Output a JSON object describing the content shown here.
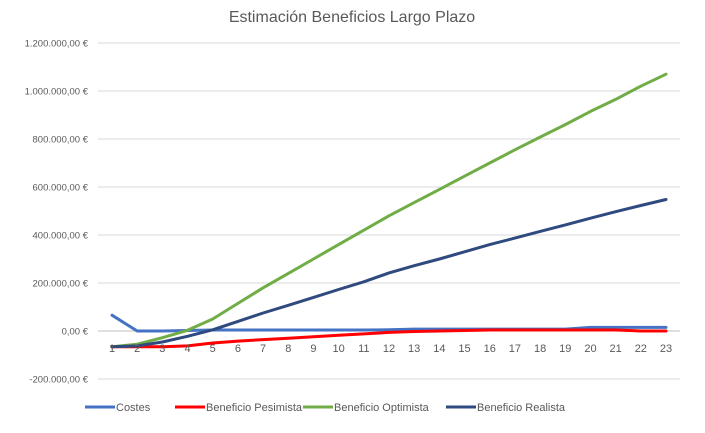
{
  "chart_data": {
    "type": "line",
    "title": "Estimación Beneficios Largo Plazo",
    "xlabel": "",
    "ylabel": "",
    "categories": [
      "1",
      "2",
      "3",
      "4",
      "5",
      "6",
      "7",
      "8",
      "9",
      "10",
      "11",
      "12",
      "13",
      "14",
      "15",
      "16",
      "17",
      "18",
      "19",
      "20",
      "21",
      "22",
      "23"
    ],
    "ylim": [
      -200000,
      1200000
    ],
    "yticks": [
      -200000,
      0,
      200000,
      400000,
      600000,
      800000,
      1000000,
      1200000
    ],
    "ytick_labels": [
      "-200.000,00 €",
      "0,00 €",
      "200.000,00 €",
      "400.000,00 €",
      "600.000,00 €",
      "800.000,00 €",
      "1.000.000,00 €",
      "1.200.000,00 €"
    ],
    "grid": "horizontal",
    "legend": "bottom",
    "series": [
      {
        "name": "Costes",
        "color": "#4472C4",
        "values": [
          66000,
          0,
          0,
          2000,
          4000,
          4000,
          4000,
          4000,
          4000,
          4000,
          4000,
          5000,
          8000,
          8000,
          8000,
          8000,
          8000,
          8000,
          8000,
          15000,
          15000,
          15000,
          15000
        ]
      },
      {
        "name": "Beneficio Pesimista",
        "color": "#FF0000",
        "values": [
          -66000,
          -66000,
          -66000,
          -62000,
          -50000,
          -42000,
          -36000,
          -30000,
          -24000,
          -18000,
          -12000,
          -6000,
          -2000,
          0,
          2000,
          4000,
          4000,
          4000,
          4000,
          4000,
          4000,
          0,
          0
        ]
      },
      {
        "name": "Beneficio Optimista",
        "color": "#70AD47",
        "values": [
          -66000,
          -55000,
          -28000,
          3000,
          50000,
          115000,
          180000,
          240000,
          300000,
          360000,
          420000,
          480000,
          535000,
          590000,
          645000,
          700000,
          755000,
          808000,
          860000,
          915000,
          965000,
          1020000,
          1070000
        ]
      },
      {
        "name": "Beneficio Realista",
        "color": "#2F4A7F",
        "values": [
          -66000,
          -62000,
          -46000,
          -22000,
          5000,
          40000,
          75000,
          107000,
          140000,
          173000,
          205000,
          242000,
          272000,
          300000,
          330000,
          360000,
          387000,
          415000,
          442000,
          470000,
          497000,
          523000,
          548000
        ]
      }
    ]
  }
}
